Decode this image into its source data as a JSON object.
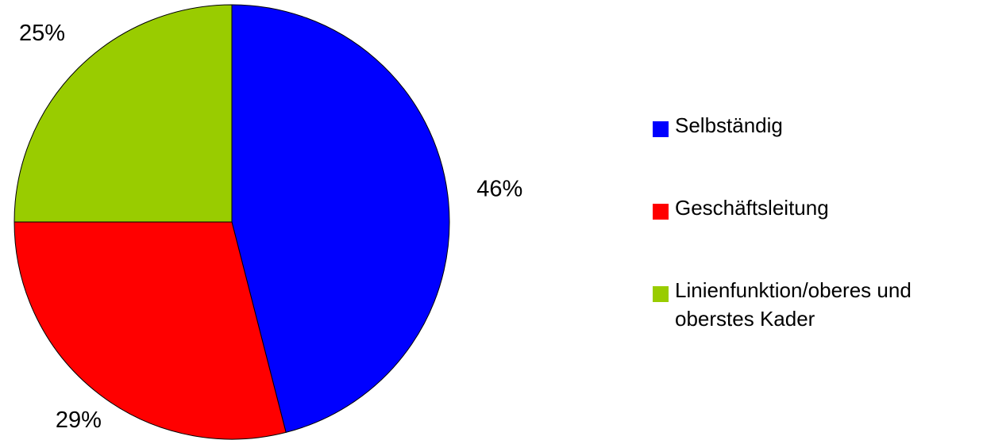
{
  "chart_data": {
    "type": "pie",
    "slices": [
      {
        "label": "Selbständig",
        "value": 46,
        "value_label": "46%",
        "color": "#0000ff"
      },
      {
        "label": "Geschäftsleitung",
        "value": 29,
        "value_label": "29%",
        "color": "#ff0000"
      },
      {
        "label": "Linienfunktion/oberes und\noberstes Kader",
        "value": 25,
        "value_label": "25%",
        "color": "#99cc00"
      }
    ],
    "start_angle": "12 o'clock",
    "direction": "clockwise",
    "legend_position": "right"
  }
}
